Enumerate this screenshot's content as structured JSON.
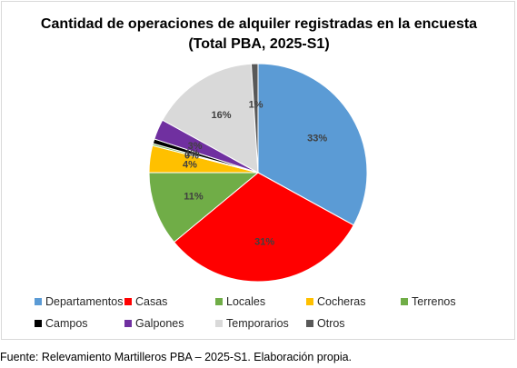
{
  "chart_data": {
    "type": "pie",
    "title": "Cantidad de operaciones de alquiler registradas en la encuesta",
    "subtitle": "(Total PBA, 2025-S1)",
    "legend_position": "bottom",
    "slices": [
      {
        "label": "Departamentos",
        "value": 33,
        "display": "33%",
        "color": "#5b9bd5"
      },
      {
        "label": "Casas",
        "value": 31,
        "display": "31%",
        "color": "#ff0000"
      },
      {
        "label": "Locales",
        "value": 11,
        "display": "11%",
        "color": "#70ad47"
      },
      {
        "label": "Cocheras",
        "value": 4,
        "display": "4%",
        "color": "#ffc000"
      },
      {
        "label": "Terrenos",
        "value": 0.3,
        "display": "0%",
        "color": "#70ad47"
      },
      {
        "label": "Campos",
        "value": 0.7,
        "display": "1%",
        "color": "#000000"
      },
      {
        "label": "Galpones",
        "value": 3,
        "display": "3%",
        "color": "#7030a0"
      },
      {
        "label": "Temporarios",
        "value": 16,
        "display": "16%",
        "color": "#d9d9d9"
      },
      {
        "label": "Otros",
        "value": 1,
        "display": "1%",
        "color": "#595959"
      }
    ]
  },
  "source_note": "Fuente: Relevamiento Martilleros PBA – 2025-S1. Elaboración propia."
}
